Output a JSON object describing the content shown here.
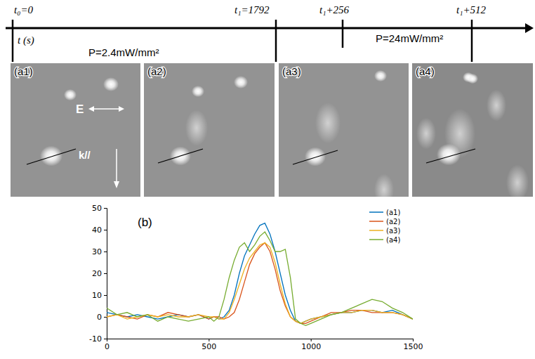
{
  "timeline": {
    "axis_label": "t (s)",
    "marks": [
      "t₀=0",
      "t₁=1792",
      "t₁+256",
      "t₁+512"
    ],
    "powers": [
      "P=2.4mW/mm²",
      "P=24mW/mm²"
    ]
  },
  "panels": {
    "labels": [
      "(a1)",
      "(a2)",
      "(a3)",
      "(a4)"
    ],
    "field_label": "E",
    "wavevector_label": "k//"
  },
  "chart_data": {
    "type": "line",
    "panel_label": "(b)",
    "x": [
      0,
      50,
      100,
      150,
      200,
      250,
      300,
      350,
      400,
      450,
      500,
      525,
      550,
      575,
      600,
      625,
      650,
      675,
      700,
      725,
      750,
      775,
      800,
      825,
      850,
      875,
      900,
      925,
      950,
      975,
      1000,
      1050,
      1100,
      1150,
      1200,
      1250,
      1300,
      1350,
      1400,
      1450,
      1500
    ],
    "series": [
      {
        "name": "(a1)",
        "color": "#0072bd",
        "values": [
          2,
          1,
          0,
          1,
          0,
          -1,
          0,
          1,
          0,
          1,
          -1,
          0,
          -1,
          0,
          3,
          10,
          20,
          28,
          33,
          38,
          42,
          43,
          38,
          30,
          20,
          10,
          3,
          -2,
          -3,
          -2,
          -1,
          0,
          1,
          2,
          2,
          3,
          3,
          2,
          3,
          1,
          -1
        ]
      },
      {
        "name": "(a2)",
        "color": "#d95319",
        "values": [
          0,
          1,
          0,
          -1,
          1,
          0,
          2,
          1,
          0,
          1,
          -1,
          0,
          0,
          -1,
          0,
          2,
          8,
          16,
          24,
          29,
          32,
          34,
          30,
          22,
          12,
          5,
          0,
          -2,
          -3,
          -3,
          -2,
          0,
          2,
          2,
          3,
          3,
          2,
          2,
          2,
          1,
          -1
        ]
      },
      {
        "name": "(a3)",
        "color": "#edb120",
        "values": [
          0,
          1,
          -1,
          0,
          1,
          0,
          1,
          0,
          0,
          1,
          0,
          0,
          -1,
          -1,
          2,
          8,
          15,
          22,
          27,
          30,
          33,
          34,
          32,
          25,
          15,
          6,
          0,
          -2,
          -3,
          -2,
          -1,
          0,
          1,
          2,
          2,
          3,
          3,
          2,
          2,
          1,
          -1
        ]
      },
      {
        "name": "(a4)",
        "color": "#77ac30",
        "values": [
          4,
          1,
          2,
          0,
          1,
          -2,
          0,
          -1,
          -2,
          -1,
          0,
          -2,
          0,
          8,
          18,
          26,
          32,
          34,
          30,
          33,
          37,
          39,
          35,
          30,
          30,
          31,
          18,
          -1,
          -3,
          -4,
          -3,
          -1,
          1,
          2,
          4,
          6,
          8,
          7,
          4,
          2,
          -1
        ]
      }
    ],
    "xlim": [
      0,
      1500
    ],
    "ylim": [
      -10,
      50
    ],
    "xticks": [
      0,
      500,
      1000,
      1500
    ],
    "yticks": [
      -10,
      0,
      10,
      20,
      30,
      40,
      50
    ],
    "legend": "upper right"
  }
}
